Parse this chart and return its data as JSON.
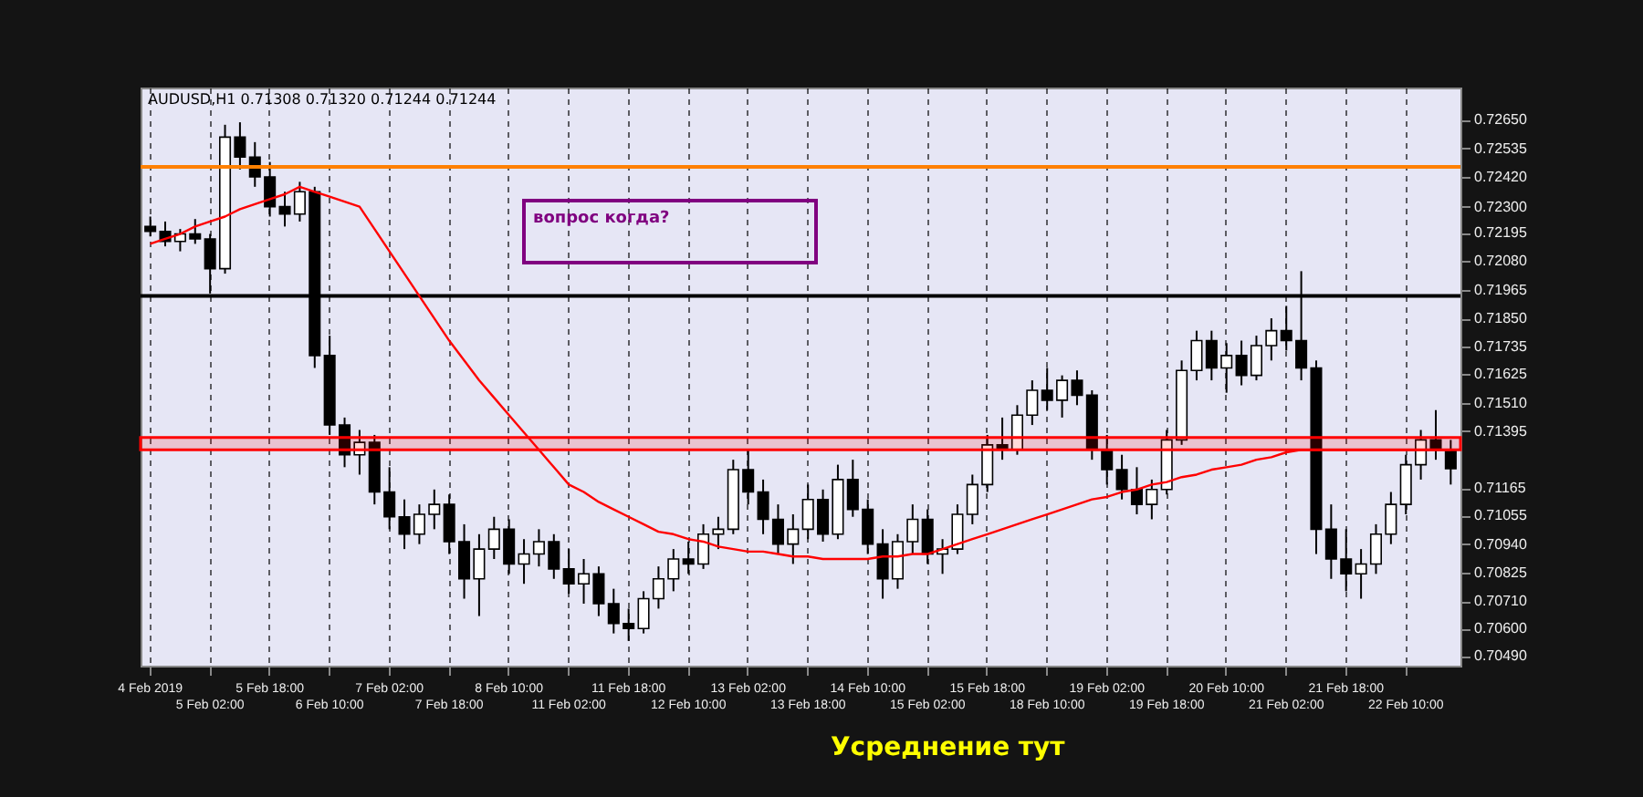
{
  "chart_data": {
    "type": "candlestick",
    "subtitle": "AUDUSD,H1 0.71308 0.71320 0.71244 0.71244",
    "categories": [
      "4 Feb 2019",
      null,
      null,
      null,
      "5 Feb 02:00",
      null,
      null,
      null,
      "5 Feb 18:00",
      null,
      null,
      null,
      "6 Feb 10:00",
      null,
      null,
      null,
      "7 Feb 02:00",
      null,
      null,
      null,
      "7 Feb 18:00",
      null,
      null,
      null,
      "8 Feb 10:00",
      null,
      null,
      null,
      "11 Feb 02:00",
      null,
      null,
      null,
      "11 Feb 18:00",
      null,
      null,
      null,
      "12 Feb 10:00",
      null,
      null,
      null,
      "13 Feb 02:00",
      null,
      null,
      null,
      "13 Feb 18:00",
      null,
      null,
      null,
      "14 Feb 10:00",
      null,
      null,
      null,
      "15 Feb 02:00",
      null,
      null,
      null,
      "15 Feb 18:00",
      null,
      null,
      null,
      "18 Feb 10:00",
      null,
      null,
      null,
      "19 Feb 02:00",
      null,
      null,
      null,
      "19 Feb 18:00",
      null,
      null,
      null,
      "20 Feb 10:00",
      null,
      null,
      null,
      "21 Feb 02:00",
      null,
      null,
      null,
      "21 Feb 18:00",
      null,
      null,
      null,
      "22 Feb 10:00",
      null,
      null,
      null
    ],
    "color": "#000000",
    "ohlc": [
      [
        0.7222,
        0.7226,
        0.7218,
        0.722
      ],
      [
        0.722,
        0.7224,
        0.7214,
        0.7216
      ],
      [
        0.7216,
        0.7221,
        0.7212,
        0.7219
      ],
      [
        0.7219,
        0.7225,
        0.7215,
        0.7217
      ],
      [
        0.7217,
        0.7219,
        0.7195,
        0.7205
      ],
      [
        0.7205,
        0.7263,
        0.7203,
        0.7258
      ],
      [
        0.7258,
        0.7264,
        0.7245,
        0.725
      ],
      [
        0.725,
        0.7256,
        0.7238,
        0.7242
      ],
      [
        0.7242,
        0.7248,
        0.7226,
        0.723
      ],
      [
        0.723,
        0.7236,
        0.7222,
        0.7227
      ],
      [
        0.7227,
        0.724,
        0.7224,
        0.7236
      ],
      [
        0.7236,
        0.7238,
        0.7165,
        0.717
      ],
      [
        0.717,
        0.7178,
        0.7138,
        0.7142
      ],
      [
        0.7142,
        0.7145,
        0.7125,
        0.713
      ],
      [
        0.713,
        0.714,
        0.7122,
        0.7135
      ],
      [
        0.7135,
        0.7138,
        0.711,
        0.7115
      ],
      [
        0.7115,
        0.7125,
        0.71,
        0.7105
      ],
      [
        0.7105,
        0.7112,
        0.7092,
        0.7098
      ],
      [
        0.7098,
        0.711,
        0.7094,
        0.7106
      ],
      [
        0.7106,
        0.7116,
        0.71,
        0.711
      ],
      [
        0.711,
        0.7114,
        0.709,
        0.7095
      ],
      [
        0.7095,
        0.7102,
        0.7072,
        0.708
      ],
      [
        0.708,
        0.7098,
        0.7065,
        0.7092
      ],
      [
        0.7092,
        0.7105,
        0.7088,
        0.71
      ],
      [
        0.71,
        0.7104,
        0.7082,
        0.7086
      ],
      [
        0.7086,
        0.7096,
        0.7078,
        0.709
      ],
      [
        0.709,
        0.71,
        0.7085,
        0.7095
      ],
      [
        0.7095,
        0.7098,
        0.708,
        0.7084
      ],
      [
        0.7084,
        0.7092,
        0.7074,
        0.7078
      ],
      [
        0.7078,
        0.7088,
        0.707,
        0.7082
      ],
      [
        0.7082,
        0.7085,
        0.7065,
        0.707
      ],
      [
        0.707,
        0.7076,
        0.7058,
        0.7062
      ],
      [
        0.7062,
        0.7068,
        0.7055,
        0.706
      ],
      [
        0.706,
        0.7075,
        0.7058,
        0.7072
      ],
      [
        0.7072,
        0.7085,
        0.7068,
        0.708
      ],
      [
        0.708,
        0.7092,
        0.7075,
        0.7088
      ],
      [
        0.7088,
        0.7095,
        0.7082,
        0.7086
      ],
      [
        0.7086,
        0.7102,
        0.7084,
        0.7098
      ],
      [
        0.7098,
        0.7105,
        0.7092,
        0.71
      ],
      [
        0.71,
        0.7128,
        0.7098,
        0.7124
      ],
      [
        0.7124,
        0.7132,
        0.711,
        0.7115
      ],
      [
        0.7115,
        0.712,
        0.7098,
        0.7104
      ],
      [
        0.7104,
        0.711,
        0.709,
        0.7094
      ],
      [
        0.7094,
        0.7106,
        0.7086,
        0.71
      ],
      [
        0.71,
        0.7118,
        0.7096,
        0.7112
      ],
      [
        0.7112,
        0.7116,
        0.7095,
        0.7098
      ],
      [
        0.7098,
        0.7126,
        0.7096,
        0.712
      ],
      [
        0.712,
        0.7128,
        0.7105,
        0.7108
      ],
      [
        0.7108,
        0.7112,
        0.709,
        0.7094
      ],
      [
        0.7094,
        0.71,
        0.7072,
        0.708
      ],
      [
        0.708,
        0.7098,
        0.7076,
        0.7095
      ],
      [
        0.7095,
        0.711,
        0.709,
        0.7104
      ],
      [
        0.7104,
        0.7108,
        0.7086,
        0.709
      ],
      [
        0.709,
        0.7096,
        0.7082,
        0.7092
      ],
      [
        0.7092,
        0.711,
        0.709,
        0.7106
      ],
      [
        0.7106,
        0.7122,
        0.7102,
        0.7118
      ],
      [
        0.7118,
        0.7138,
        0.7115,
        0.7134
      ],
      [
        0.7134,
        0.7145,
        0.7128,
        0.7132
      ],
      [
        0.7132,
        0.715,
        0.713,
        0.7146
      ],
      [
        0.7146,
        0.716,
        0.7142,
        0.7156
      ],
      [
        0.7156,
        0.7165,
        0.7148,
        0.7152
      ],
      [
        0.7152,
        0.7162,
        0.7145,
        0.716
      ],
      [
        0.716,
        0.7164,
        0.715,
        0.7154
      ],
      [
        0.7154,
        0.7156,
        0.7128,
        0.7132
      ],
      [
        0.7132,
        0.7138,
        0.7118,
        0.7124
      ],
      [
        0.7124,
        0.713,
        0.7112,
        0.7116
      ],
      [
        0.7116,
        0.7125,
        0.7106,
        0.711
      ],
      [
        0.711,
        0.712,
        0.7104,
        0.7116
      ],
      [
        0.7116,
        0.714,
        0.7114,
        0.7136
      ],
      [
        0.7136,
        0.7168,
        0.7134,
        0.7164
      ],
      [
        0.7164,
        0.718,
        0.716,
        0.7176
      ],
      [
        0.7176,
        0.718,
        0.716,
        0.7165
      ],
      [
        0.7165,
        0.7175,
        0.7155,
        0.717
      ],
      [
        0.717,
        0.7176,
        0.7158,
        0.7162
      ],
      [
        0.7162,
        0.7178,
        0.716,
        0.7174
      ],
      [
        0.7174,
        0.7185,
        0.7168,
        0.718
      ],
      [
        0.718,
        0.719,
        0.7172,
        0.7176
      ],
      [
        0.7176,
        0.7204,
        0.716,
        0.7165
      ],
      [
        0.7165,
        0.7168,
        0.709,
        0.71
      ],
      [
        0.71,
        0.711,
        0.708,
        0.7088
      ],
      [
        0.7088,
        0.71,
        0.7075,
        0.7082
      ],
      [
        0.7082,
        0.7092,
        0.7072,
        0.7086
      ],
      [
        0.7086,
        0.7102,
        0.7082,
        0.7098
      ],
      [
        0.7098,
        0.7115,
        0.7094,
        0.711
      ],
      [
        0.711,
        0.713,
        0.7106,
        0.7126
      ],
      [
        0.7126,
        0.714,
        0.712,
        0.7136
      ],
      [
        0.7136,
        0.7148,
        0.7128,
        0.7132
      ],
      [
        0.7132,
        0.7136,
        0.7118,
        0.71244
      ]
    ],
    "series": [
      {
        "type": "line",
        "color": "#ff0000",
        "values": [
          0.7215,
          0.7217,
          0.7219,
          0.7222,
          0.7224,
          0.7226,
          0.7229,
          0.7231,
          0.7233,
          0.7235,
          0.7238,
          0.7236,
          0.7234,
          0.7232,
          0.723,
          0.7221,
          0.7212,
          0.7203,
          0.7194,
          0.7185,
          0.7176,
          0.7168,
          0.716,
          0.7153,
          0.7146,
          0.7139,
          0.7132,
          0.7125,
          0.7118,
          0.7115,
          0.7111,
          0.7108,
          0.7105,
          0.7102,
          0.7099,
          0.7098,
          0.7096,
          0.7095,
          0.7093,
          0.7092,
          0.7091,
          0.7091,
          0.709,
          0.7089,
          0.7089,
          0.7088,
          0.7088,
          0.7088,
          0.7088,
          0.7089,
          0.7089,
          0.709,
          0.709,
          0.7092,
          0.7094,
          0.7096,
          0.7098,
          0.71,
          0.7102,
          0.7104,
          0.7106,
          0.7108,
          0.711,
          0.7112,
          0.7113,
          0.7115,
          0.7116,
          0.7118,
          0.7119,
          0.7121,
          0.7122,
          0.7124,
          0.7125,
          0.7126,
          0.7128,
          0.7129,
          0.7131,
          0.7132,
          0.7132,
          0.7132,
          0.7132,
          0.7132,
          0.7132,
          0.7132,
          0.7132,
          0.7132,
          0.7132,
          0.7132
        ]
      }
    ],
    "ylim": [
      0.7045,
      0.7278
    ],
    "yticks": [
      {
        "value": 0.7265,
        "label": "0.72650"
      },
      {
        "value": 0.72535,
        "label": "0.72535"
      },
      {
        "value": 0.7242,
        "label": "0.72420"
      },
      {
        "value": 0.723,
        "label": "0.72300"
      },
      {
        "value": 0.72195,
        "label": "0.72195"
      },
      {
        "value": 0.7208,
        "label": "0.72080"
      },
      {
        "value": 0.71965,
        "label": "0.71965"
      },
      {
        "value": 0.7185,
        "label": "0.71850"
      },
      {
        "value": 0.71735,
        "label": "0.71735"
      },
      {
        "value": 0.71625,
        "label": "0.71625"
      },
      {
        "value": 0.7151,
        "label": "0.71510"
      },
      {
        "value": 0.71395,
        "label": "0.71395"
      },
      {
        "value": 0.71165,
        "label": "0.71165"
      },
      {
        "value": 0.71055,
        "label": "0.71055"
      },
      {
        "value": 0.7094,
        "label": "0.70940"
      },
      {
        "value": 0.70825,
        "label": "0.70825"
      },
      {
        "value": 0.7071,
        "label": "0.70710"
      },
      {
        "value": 0.706,
        "label": "0.70600"
      },
      {
        "value": 0.7049,
        "label": "0.70490"
      }
    ],
    "ref_lines": [
      {
        "axis": "y",
        "value": 0.7194,
        "color": "#000000"
      },
      {
        "axis": "y",
        "value": 0.7246,
        "color": "#ff8000"
      }
    ],
    "bands": [
      {
        "axis": "y",
        "from": 0.7132,
        "to": 0.7137,
        "color": "#ff0000"
      }
    ],
    "annotations": [
      "вопрос когда?",
      "Усреднение тут"
    ],
    "grid": "x"
  }
}
